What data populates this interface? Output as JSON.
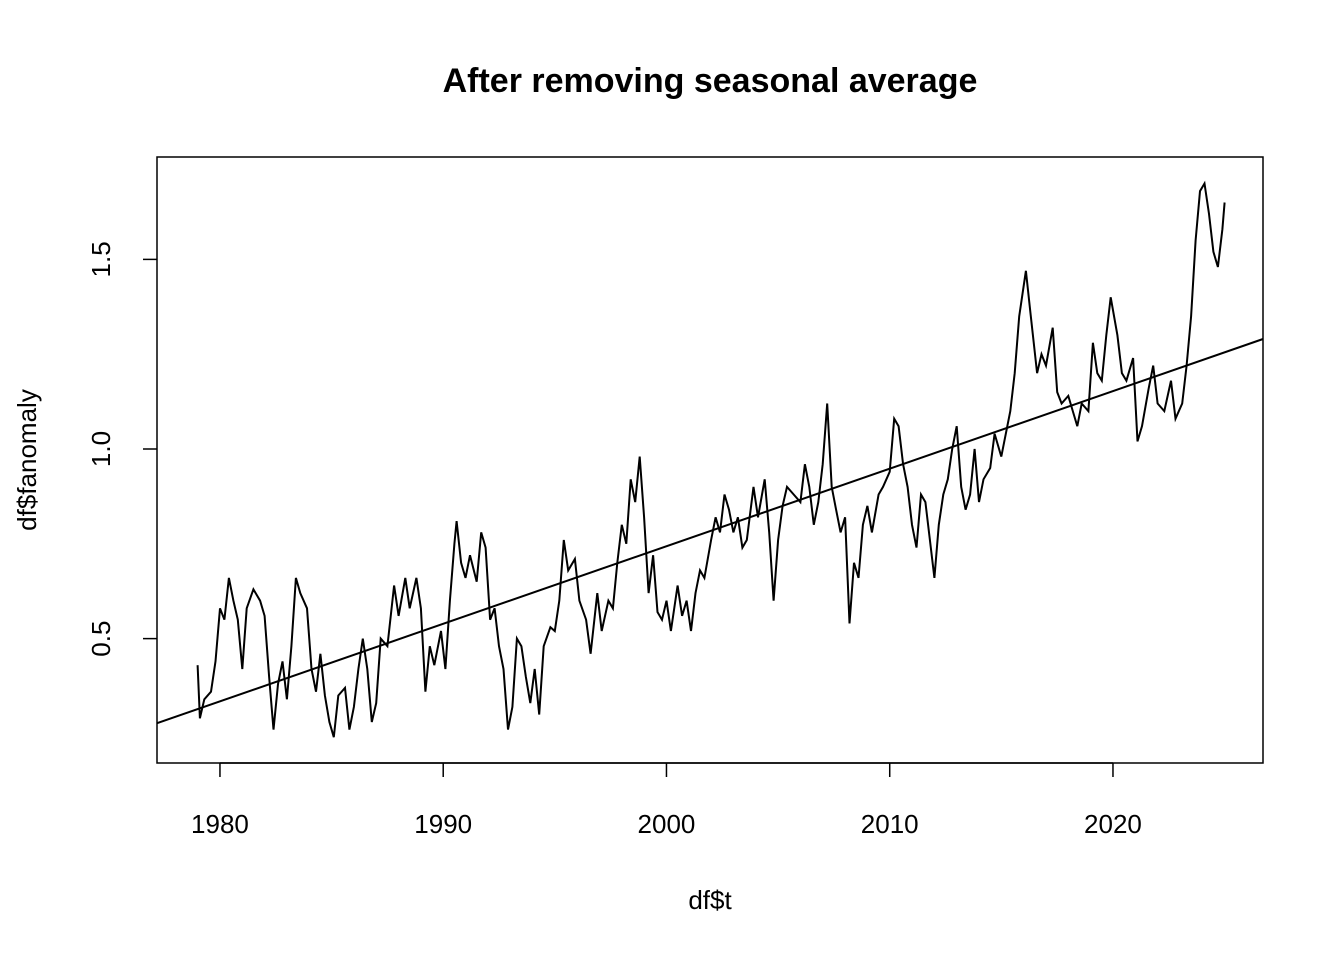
{
  "chart_data": {
    "type": "line",
    "title": "After removing seasonal average",
    "x_label": "df$t",
    "y_label": "df$fanomaly",
    "xlim": [
      1977.18,
      2026.72
    ],
    "ylim": [
      0.172,
      1.77
    ],
    "xticks": [
      1980,
      1990,
      2000,
      2010,
      2020
    ],
    "yticks": [
      0.5,
      {
        "value": 1,
        "label": "1.0"
      },
      1.5
    ],
    "series": [
      {
        "color": "#000000",
        "x": [
          1979.0,
          1979.1,
          1979.3,
          1979.6,
          1979.8,
          1980.0,
          1980.2,
          1980.4,
          1980.6,
          1980.8,
          1981.0,
          1981.2,
          1981.5,
          1981.8,
          1982.0,
          1982.2,
          1982.4,
          1982.6,
          1982.8,
          1983.0,
          1983.2,
          1983.4,
          1983.6,
          1983.9,
          1984.1,
          1984.3,
          1984.5,
          1984.7,
          1984.9,
          1985.1,
          1985.3,
          1985.6,
          1985.8,
          1986.0,
          1986.2,
          1986.4,
          1986.6,
          1986.8,
          1987.0,
          1987.2,
          1987.5,
          1987.8,
          1988.0,
          1988.3,
          1988.5,
          1988.8,
          1989.0,
          1989.2,
          1989.4,
          1989.6,
          1989.9,
          1990.1,
          1990.3,
          1990.5,
          1990.6,
          1990.8,
          1991.0,
          1991.2,
          1991.5,
          1991.7,
          1991.9,
          1992.1,
          1992.3,
          1992.5,
          1992.7,
          1992.9,
          1993.1,
          1993.3,
          1993.5,
          1993.7,
          1993.9,
          1994.1,
          1994.3,
          1994.5,
          1994.8,
          1995.0,
          1995.2,
          1995.4,
          1995.6,
          1995.9,
          1996.1,
          1996.4,
          1996.6,
          1996.9,
          1997.1,
          1997.4,
          1997.6,
          1997.8,
          1998.0,
          1998.2,
          1998.4,
          1998.6,
          1998.8,
          1999.0,
          1999.2,
          1999.4,
          1999.6,
          1999.8,
          2000.0,
          2000.2,
          2000.5,
          2000.7,
          2000.9,
          2001.1,
          2001.3,
          2001.5,
          2001.7,
          2002.0,
          2002.2,
          2002.4,
          2002.6,
          2002.8,
          2003.0,
          2003.2,
          2003.4,
          2003.6,
          2003.9,
          2004.1,
          2004.4,
          2004.6,
          2004.8,
          2005.0,
          2005.2,
          2005.4,
          2005.7,
          2006.0,
          2006.2,
          2006.4,
          2006.6,
          2006.8,
          2007.0,
          2007.2,
          2007.4,
          2007.6,
          2007.8,
          2008.0,
          2008.2,
          2008.4,
          2008.6,
          2008.8,
          2009.0,
          2009.2,
          2009.5,
          2009.7,
          2010.0,
          2010.2,
          2010.4,
          2010.6,
          2010.8,
          2011.0,
          2011.2,
          2011.4,
          2011.6,
          2011.8,
          2012.0,
          2012.2,
          2012.4,
          2012.6,
          2012.8,
          2013.0,
          2013.2,
          2013.4,
          2013.6,
          2013.8,
          2014.0,
          2014.2,
          2014.5,
          2014.7,
          2015.0,
          2015.2,
          2015.4,
          2015.6,
          2015.8,
          2016.1,
          2016.3,
          2016.6,
          2016.8,
          2017.0,
          2017.3,
          2017.5,
          2017.7,
          2018.0,
          2018.2,
          2018.4,
          2018.6,
          2018.9,
          2019.1,
          2019.3,
          2019.5,
          2019.7,
          2019.9,
          2020.2,
          2020.4,
          2020.6,
          2020.9,
          2021.1,
          2021.3,
          2021.6,
          2021.8,
          2022.0,
          2022.3,
          2022.6,
          2022.8,
          2023.1,
          2023.3,
          2023.5,
          2023.7,
          2023.9,
          2024.1,
          2024.3,
          2024.5,
          2024.7,
          2024.9,
          2025.0
        ],
        "values": [
          0.43,
          0.29,
          0.34,
          0.36,
          0.44,
          0.58,
          0.55,
          0.66,
          0.6,
          0.55,
          0.42,
          0.58,
          0.63,
          0.6,
          0.56,
          0.4,
          0.26,
          0.38,
          0.44,
          0.34,
          0.48,
          0.66,
          0.62,
          0.58,
          0.42,
          0.36,
          0.46,
          0.35,
          0.28,
          0.24,
          0.35,
          0.37,
          0.26,
          0.32,
          0.42,
          0.5,
          0.42,
          0.28,
          0.33,
          0.5,
          0.48,
          0.64,
          0.56,
          0.66,
          0.58,
          0.66,
          0.58,
          0.36,
          0.48,
          0.43,
          0.52,
          0.42,
          0.6,
          0.75,
          0.81,
          0.7,
          0.66,
          0.72,
          0.65,
          0.78,
          0.74,
          0.55,
          0.58,
          0.48,
          0.42,
          0.26,
          0.32,
          0.5,
          0.48,
          0.4,
          0.33,
          0.42,
          0.3,
          0.48,
          0.53,
          0.52,
          0.6,
          0.76,
          0.68,
          0.71,
          0.6,
          0.55,
          0.46,
          0.62,
          0.52,
          0.6,
          0.58,
          0.7,
          0.8,
          0.75,
          0.92,
          0.86,
          0.98,
          0.82,
          0.62,
          0.72,
          0.57,
          0.55,
          0.6,
          0.52,
          0.64,
          0.56,
          0.6,
          0.52,
          0.62,
          0.68,
          0.66,
          0.76,
          0.82,
          0.78,
          0.88,
          0.84,
          0.78,
          0.82,
          0.74,
          0.76,
          0.9,
          0.82,
          0.92,
          0.78,
          0.6,
          0.76,
          0.85,
          0.9,
          0.88,
          0.86,
          0.96,
          0.9,
          0.8,
          0.86,
          0.96,
          1.12,
          0.9,
          0.84,
          0.78,
          0.82,
          0.54,
          0.7,
          0.66,
          0.8,
          0.85,
          0.78,
          0.88,
          0.9,
          0.94,
          1.08,
          1.06,
          0.96,
          0.9,
          0.8,
          0.74,
          0.88,
          0.86,
          0.76,
          0.66,
          0.8,
          0.88,
          0.92,
          1.0,
          1.06,
          0.9,
          0.84,
          0.88,
          1.0,
          0.86,
          0.92,
          0.95,
          1.04,
          0.98,
          1.04,
          1.1,
          1.2,
          1.35,
          1.47,
          1.36,
          1.2,
          1.25,
          1.22,
          1.32,
          1.15,
          1.12,
          1.14,
          1.1,
          1.06,
          1.12,
          1.1,
          1.28,
          1.2,
          1.18,
          1.3,
          1.4,
          1.3,
          1.2,
          1.18,
          1.24,
          1.02,
          1.06,
          1.16,
          1.22,
          1.12,
          1.1,
          1.18,
          1.08,
          1.12,
          1.22,
          1.35,
          1.55,
          1.68,
          1.7,
          1.62,
          1.52,
          1.48,
          1.58,
          1.65
        ]
      },
      {
        "color": "#000000",
        "x": [
          1977.18,
          2026.72
        ],
        "values": [
          0.277,
          1.29
        ]
      }
    ]
  }
}
